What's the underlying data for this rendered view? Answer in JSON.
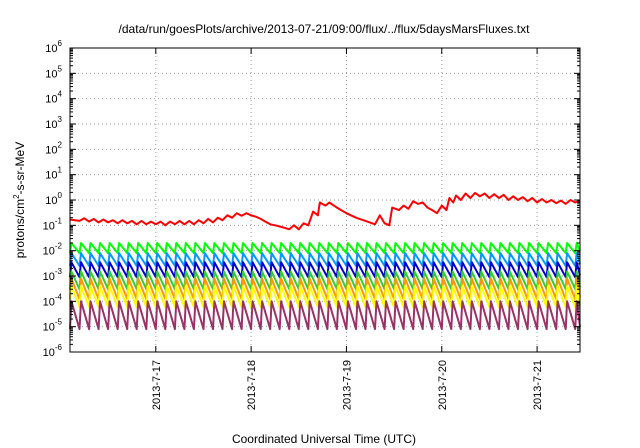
{
  "chart_data": {
    "type": "line",
    "title": "/data/run/goesPlots/archive/2013-07-21/09:00/flux/../flux/5daysMarsFluxes.txt",
    "xlabel": "Coordinated Universal Time (UTC)",
    "ylabel_parts": [
      "protons/cm",
      "2",
      "-s-sr-MeV"
    ],
    "y_scale": "log",
    "ylim_exp": [
      -6,
      6
    ],
    "y_ticks": [
      {
        "base": "10",
        "exp": "6",
        "e": 6
      },
      {
        "base": "10",
        "exp": "5",
        "e": 5
      },
      {
        "base": "10",
        "exp": "4",
        "e": 4
      },
      {
        "base": "10",
        "exp": "3",
        "e": 3
      },
      {
        "base": "10",
        "exp": "2",
        "e": 2
      },
      {
        "base": "10",
        "exp": "1",
        "e": 1
      },
      {
        "base": "10",
        "exp": "0",
        "e": 0
      },
      {
        "base": "10",
        "exp": "-1",
        "e": -1
      },
      {
        "base": "10",
        "exp": "-2",
        "e": -2
      },
      {
        "base": "10",
        "exp": "-3",
        "e": -3
      },
      {
        "base": "10",
        "exp": "-4",
        "e": -4
      },
      {
        "base": "10",
        "exp": "-5",
        "e": -5
      },
      {
        "base": "10",
        "exp": "-6",
        "e": -6
      }
    ],
    "xlim_days": [
      16.1,
      21.45
    ],
    "x_ticks": [
      {
        "label": "2013-7-17",
        "day": 17
      },
      {
        "label": "2013-7-18",
        "day": 18
      },
      {
        "label": "2013-7-19",
        "day": 19
      },
      {
        "label": "2013-7-20",
        "day": 20
      },
      {
        "label": "2013-7-21",
        "day": 21
      }
    ],
    "grid": true,
    "series": [
      {
        "color": "#ff0000",
        "points": [
          [
            16.1,
            0.17
          ],
          [
            16.2,
            0.15
          ],
          [
            16.25,
            0.19
          ],
          [
            16.3,
            0.14
          ],
          [
            16.35,
            0.18
          ],
          [
            16.4,
            0.13
          ],
          [
            16.45,
            0.17
          ],
          [
            16.5,
            0.13
          ],
          [
            16.55,
            0.16
          ],
          [
            16.6,
            0.12
          ],
          [
            16.65,
            0.16
          ],
          [
            16.7,
            0.12
          ],
          [
            16.75,
            0.15
          ],
          [
            16.8,
            0.11
          ],
          [
            16.85,
            0.15
          ],
          [
            16.9,
            0.11
          ],
          [
            16.95,
            0.14
          ],
          [
            17.0,
            0.11
          ],
          [
            17.05,
            0.14
          ],
          [
            17.1,
            0.1
          ],
          [
            17.15,
            0.14
          ],
          [
            17.2,
            0.11
          ],
          [
            17.25,
            0.15
          ],
          [
            17.3,
            0.11
          ],
          [
            17.35,
            0.15
          ],
          [
            17.4,
            0.11
          ],
          [
            17.45,
            0.16
          ],
          [
            17.5,
            0.12
          ],
          [
            17.55,
            0.18
          ],
          [
            17.6,
            0.13
          ],
          [
            17.65,
            0.2
          ],
          [
            17.7,
            0.16
          ],
          [
            17.75,
            0.25
          ],
          [
            17.8,
            0.2
          ],
          [
            17.85,
            0.3
          ],
          [
            17.9,
            0.24
          ],
          [
            17.95,
            0.3
          ],
          [
            18.0,
            0.25
          ],
          [
            18.05,
            0.22
          ],
          [
            18.1,
            0.18
          ],
          [
            18.15,
            0.14
          ],
          [
            18.2,
            0.11
          ],
          [
            18.25,
            0.1
          ],
          [
            18.3,
            0.09
          ],
          [
            18.35,
            0.08
          ],
          [
            18.4,
            0.07
          ],
          [
            18.45,
            0.1
          ],
          [
            18.5,
            0.07
          ],
          [
            18.55,
            0.12
          ],
          [
            18.6,
            0.1
          ],
          [
            18.65,
            0.35
          ],
          [
            18.7,
            0.25
          ],
          [
            18.72,
            0.8
          ],
          [
            18.78,
            0.6
          ],
          [
            18.82,
            0.8
          ],
          [
            18.9,
            0.5
          ],
          [
            19.0,
            0.3
          ],
          [
            19.1,
            0.2
          ],
          [
            19.2,
            0.15
          ],
          [
            19.3,
            0.11
          ],
          [
            19.35,
            0.25
          ],
          [
            19.4,
            0.12
          ],
          [
            19.45,
            0.1
          ],
          [
            19.48,
            0.5
          ],
          [
            19.55,
            0.4
          ],
          [
            19.6,
            0.6
          ],
          [
            19.65,
            0.45
          ],
          [
            19.7,
            0.9
          ],
          [
            19.75,
            0.7
          ],
          [
            19.8,
            0.8
          ],
          [
            19.85,
            0.5
          ],
          [
            19.9,
            0.4
          ],
          [
            19.95,
            0.3
          ],
          [
            20.0,
            0.6
          ],
          [
            20.05,
            0.4
          ],
          [
            20.08,
            1.2
          ],
          [
            20.12,
            0.8
          ],
          [
            20.15,
            1.5
          ],
          [
            20.2,
            1.0
          ],
          [
            20.25,
            1.8
          ],
          [
            20.3,
            1.2
          ],
          [
            20.35,
            1.9
          ],
          [
            20.4,
            1.4
          ],
          [
            20.45,
            1.8
          ],
          [
            20.5,
            1.2
          ],
          [
            20.55,
            1.7
          ],
          [
            20.6,
            1.2
          ],
          [
            20.65,
            1.6
          ],
          [
            20.7,
            1.0
          ],
          [
            20.75,
            1.4
          ],
          [
            20.8,
            1.0
          ],
          [
            20.85,
            1.3
          ],
          [
            20.9,
            0.9
          ],
          [
            20.95,
            1.2
          ],
          [
            21.0,
            0.8
          ],
          [
            21.05,
            1.1
          ],
          [
            21.1,
            0.8
          ],
          [
            21.15,
            1.0
          ],
          [
            21.2,
            0.75
          ],
          [
            21.25,
            0.95
          ],
          [
            21.3,
            0.7
          ],
          [
            21.35,
            1.0
          ],
          [
            21.4,
            0.8
          ],
          [
            21.45,
            0.95
          ]
        ]
      },
      {
        "color": "#00ff00",
        "peak": 0.02,
        "trough": 0.008,
        "cycle": 0.1
      },
      {
        "color": "#0099ff",
        "peak": 0.008,
        "trough": 0.0025,
        "cycle": 0.1
      },
      {
        "color": "#0000cc",
        "peak": 0.0035,
        "trough": 0.0009,
        "cycle": 0.1
      },
      {
        "color": "#33cc33",
        "peak": 0.0015,
        "trough": 0.0003,
        "cycle": 0.1
      },
      {
        "color": "#ff9900",
        "peak": 0.0008,
        "trough": 0.00012,
        "cycle": 0.1
      },
      {
        "color": "#ffff00",
        "peak": 0.0004,
        "trough": 6e-05,
        "cycle": 0.1
      },
      {
        "color": "#993366",
        "peak": 0.0001,
        "trough": 8e-06,
        "cycle": 0.1
      }
    ]
  }
}
